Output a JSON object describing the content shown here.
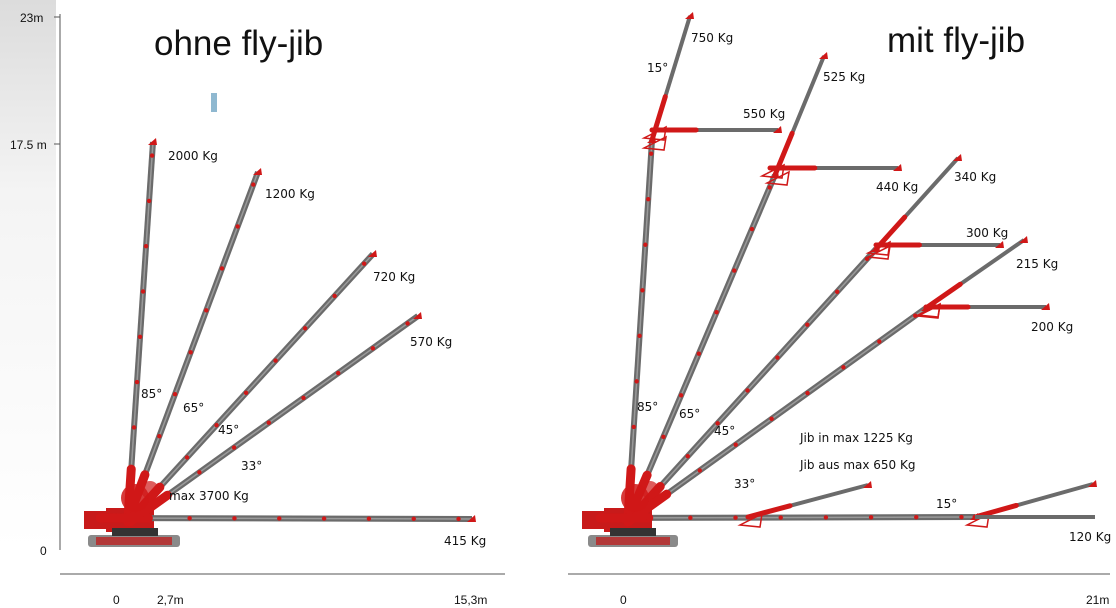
{
  "panels": [
    {
      "title": "ohne fly-jib",
      "y_axis": {
        "top_label": "23m",
        "mid_label": "17.5 m",
        "zero_label": "0"
      },
      "x_axis": {
        "labels": [
          "0",
          "2,7m",
          "15,3m"
        ]
      },
      "booms": [
        {
          "angle_label": "85°",
          "load_label": "2000 Kg"
        },
        {
          "angle_label": "65°",
          "load_label": "1200 Kg"
        },
        {
          "angle_label": "45°",
          "load_label": "720 Kg"
        },
        {
          "angle_label": "33°",
          "load_label": "570 Kg"
        },
        {
          "angle_label": "",
          "load_label": "415 Kg"
        }
      ],
      "notes": [
        "max 3700 Kg"
      ]
    },
    {
      "title": "mit fly-jib",
      "x_axis": {
        "labels": [
          "0",
          "21m"
        ]
      },
      "booms": [
        {
          "angle_label": "85°",
          "load_label": "550 Kg",
          "jib_angle_label": "15°",
          "jib_load_label": "750 Kg"
        },
        {
          "angle_label": "65°",
          "load_label": "440 Kg",
          "jib_load_label": "525 Kg"
        },
        {
          "angle_label": "45°",
          "load_label": "300 Kg",
          "jib_load_label": "340 Kg"
        },
        {
          "angle_label": "",
          "load_label": "200 Kg",
          "jib_load_label": "215 Kg"
        },
        {
          "angle_label": "33°",
          "load_label": ""
        },
        {
          "angle_label": "15°",
          "load_label": "120 Kg"
        }
      ],
      "notes": [
        "Jib in max 1225 Kg",
        "Jib aus max 650 Kg"
      ]
    }
  ],
  "colors": {
    "boom": "#6b6b6b",
    "crane_red": "#d01818",
    "accent_blue": "#8fb8d0"
  }
}
